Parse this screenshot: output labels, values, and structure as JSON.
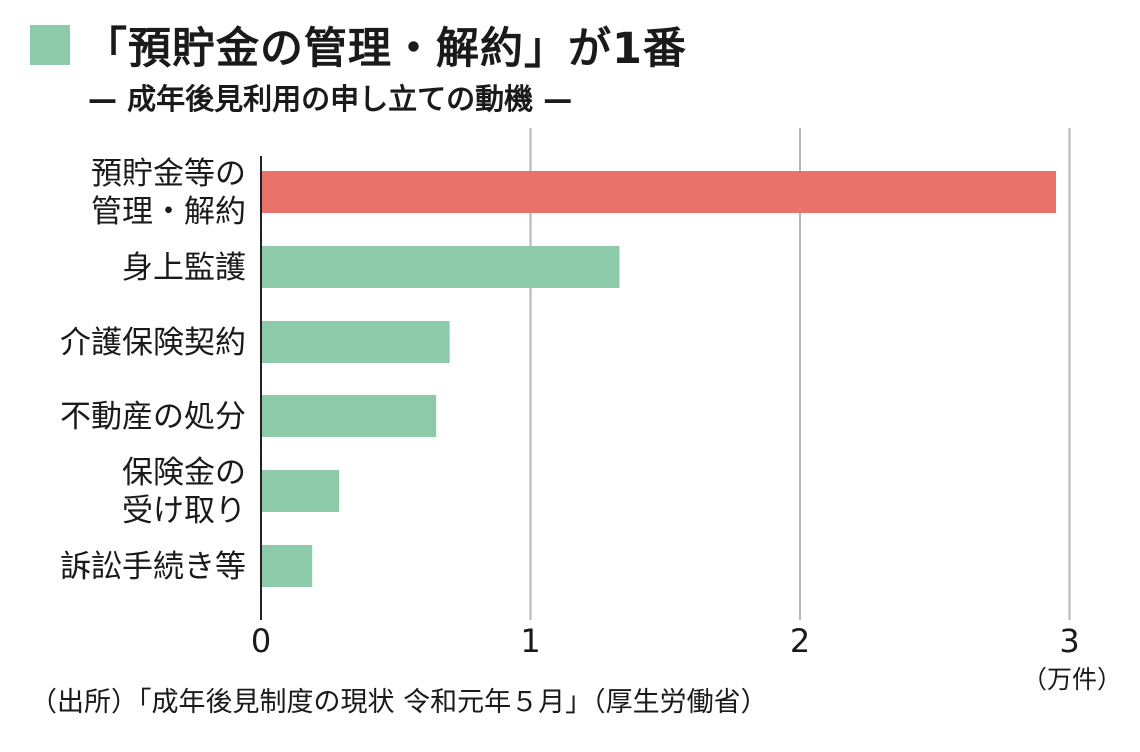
{
  "title": "「預貯金の管理・解約」が1番",
  "subtitle": "— 成年後見利用の申し立ての動機 —",
  "source": "（出所）「成年後見制度の現状 令和元年５月」（厚生労働省）",
  "unit": "（万件）",
  "colors": {
    "highlight": "#e8726a",
    "normal": "#8dcaa9",
    "grid": "#b5b5b5",
    "axis": "#222222",
    "title_square": "#8dcaa9"
  },
  "chart_data": {
    "type": "bar",
    "orientation": "horizontal",
    "categories": [
      [
        "預貯金等の",
        "管理・解約"
      ],
      [
        "身上監護"
      ],
      [
        "介護保険契約"
      ],
      [
        "不動産の処分"
      ],
      [
        "保険金の",
        "受け取り"
      ],
      [
        "訴訟手続き等"
      ]
    ],
    "values": [
      2.95,
      1.33,
      0.7,
      0.65,
      0.29,
      0.19
    ],
    "highlight_index": 0,
    "xlim": [
      0,
      3
    ],
    "xticks": [
      "0",
      "1",
      "2",
      "3"
    ],
    "grid": true
  }
}
